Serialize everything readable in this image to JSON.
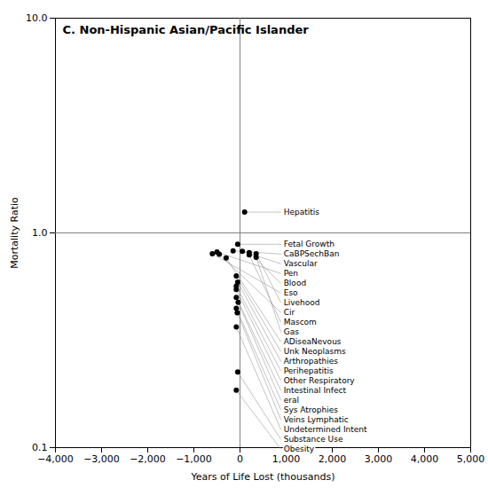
{
  "chart_data": {
    "type": "scatter",
    "title": "C. Non-Hispanic Asian/Pacific Islander",
    "xlabel": "Years of Life Lost (thousands)",
    "ylabel": "Mortality Ratio",
    "log": "y",
    "xlim": [
      -4000,
      5000
    ],
    "ylim": [
      0.1,
      10.0
    ],
    "xticks": [
      {
        "value": -4000,
        "label": "−4,000"
      },
      {
        "value": -3000,
        "label": "−3,000"
      },
      {
        "value": -2000,
        "label": "−2,000"
      },
      {
        "value": -1000,
        "label": "−1,000"
      },
      0,
      {
        "value": 1000,
        "label": "1,000"
      },
      {
        "value": 2000,
        "label": "2,000"
      },
      {
        "value": 3000,
        "label": "3,000"
      },
      {
        "value": 4000,
        "label": "4,000"
      },
      {
        "value": 5000,
        "label": "5,000"
      }
    ],
    "yticks": [
      0.1,
      {
        "value": 1.0,
        "label": "1.0"
      },
      {
        "value": 10.0,
        "label": "10.0"
      }
    ],
    "vline": 0,
    "hline": 1.0,
    "color": "#000000",
    "labels": [
      "Hepatitis",
      "Fetal Growth",
      "CaBPSechBan",
      "Pen",
      "Eso",
      "Cir",
      "Vascular",
      "Blood",
      "Livehood",
      "Mascom",
      "ADiseaNevous",
      "Gas",
      "Unk Neoplasms",
      "Arthropathies",
      "Perihepatitis",
      "Other Respiratory",
      "Intestinal Infect",
      "eral",
      "Sys Atrophies",
      "Veins Lymphatic",
      "Undetermined Intent",
      "Substance Use",
      "Obesity"
    ],
    "x": [
      100,
      -50,
      -150,
      -500,
      -600,
      -450,
      50,
      200,
      350,
      200,
      -300,
      350,
      -80,
      -50,
      -80,
      -80,
      -80,
      -40,
      -80,
      -60,
      -80,
      -50,
      -80
    ],
    "values": [
      1.25,
      0.885,
      0.825,
      0.815,
      0.8,
      0.795,
      0.82,
      0.81,
      0.8,
      0.79,
      0.765,
      0.77,
      0.63,
      0.59,
      0.565,
      0.545,
      0.5,
      0.475,
      0.445,
      0.425,
      0.365,
      0.225,
      0.185
    ]
  }
}
